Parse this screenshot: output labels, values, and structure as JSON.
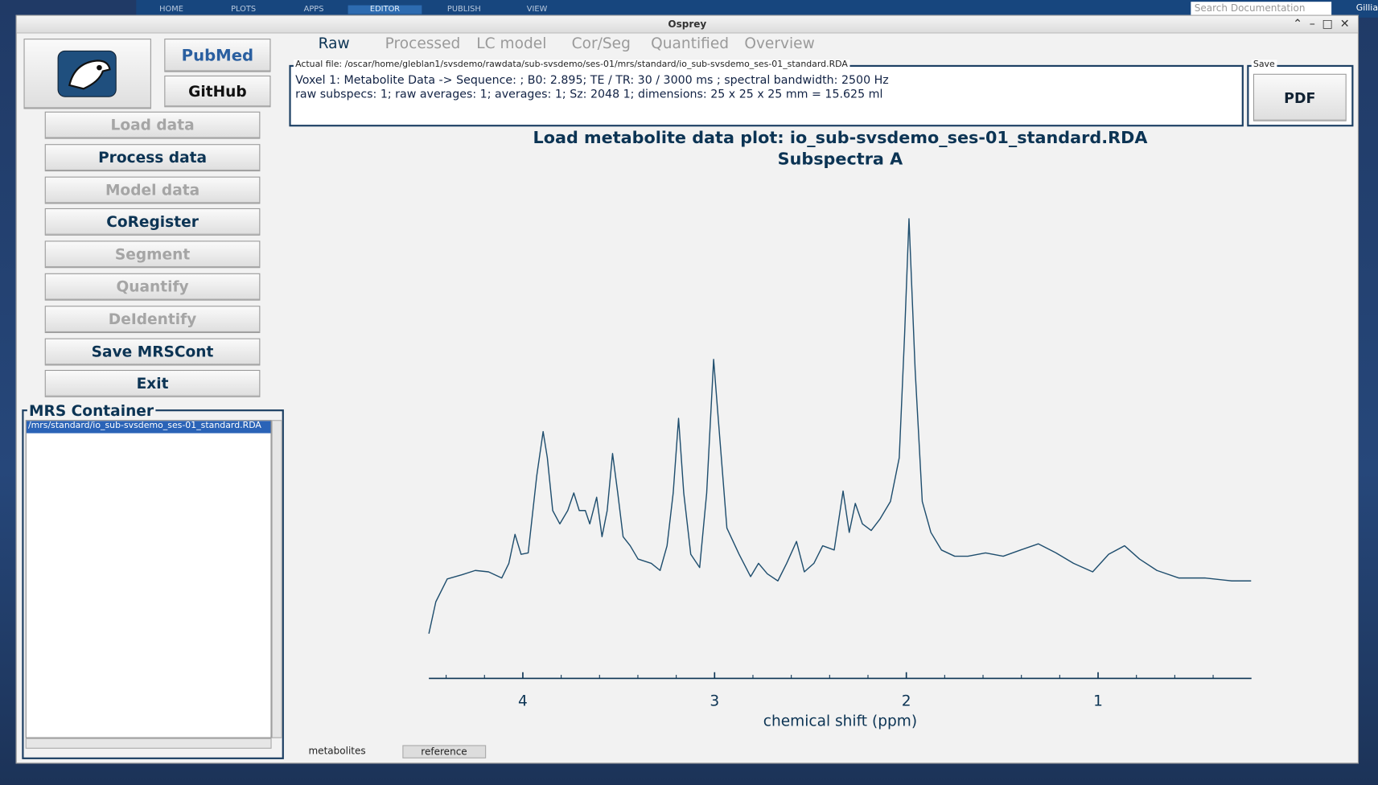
{
  "matlab_toolstrip": {
    "tabs": [
      "HOME",
      "PLOTS",
      "APPS",
      "EDITOR",
      "PUBLISH",
      "VIEW"
    ],
    "search": "Search Documentation",
    "user": "Gillia"
  },
  "window": {
    "title": "Osprey"
  },
  "links": {
    "pubmed": "PubMed",
    "github": "GitHub"
  },
  "buttons": [
    {
      "label": "Load data",
      "enabled": false
    },
    {
      "label": "Process data",
      "enabled": true
    },
    {
      "label": "Model data",
      "enabled": false
    },
    {
      "label": "CoRegister",
      "enabled": true
    },
    {
      "label": "Segment",
      "enabled": false
    },
    {
      "label": "Quantify",
      "enabled": false
    },
    {
      "label": "DeIdentify",
      "enabled": false
    },
    {
      "label": "Save MRSCont",
      "enabled": true
    },
    {
      "label": "Exit",
      "enabled": true
    }
  ],
  "container": {
    "title": "MRS Container",
    "items": [
      "/mrs/standard/io_sub-svsdemo_ses-01_standard.RDA"
    ]
  },
  "tabs": {
    "items": [
      "Raw",
      "Processed",
      "LC model",
      "Cor/Seg",
      "Quantified",
      "Overview"
    ],
    "active": 0
  },
  "info": {
    "legend": "Actual file: /oscar/home/gleblan1/svsdemo/rawdata/sub-svsdemo/ses-01/mrs/standard/io_sub-svsdemo_ses-01_standard.RDA",
    "line1": "Voxel 1: Metabolite Data -> Sequence:  ; B0: 2.895; TE / TR: 30 / 3000 ms ; spectral bandwidth: 2500 Hz",
    "line2": "raw subspecs: 1; raw averages: 1; averages: 1; Sz: 2048     1; dimensions: 25 x 25 x 25 mm = 15.625 ml"
  },
  "save": {
    "legend": "Save",
    "button": "PDF"
  },
  "chart_data": {
    "type": "line",
    "title": "Load metabolite data plot: io_sub-svsdemo_ses-01_standard.RDA",
    "subtitle": "Subspectra A",
    "x_label": "chemical shift (ppm)",
    "xlim": [
      4.49,
      0.2
    ],
    "xticks": [
      4,
      3,
      2,
      1
    ],
    "xminorticks": [
      4.4,
      4.2,
      3.8,
      3.6,
      3.4,
      3.2,
      2.8,
      2.6,
      2.4,
      2.2,
      1.8,
      1.6,
      1.4,
      1.2,
      0.8,
      0.6,
      0.4
    ],
    "ylim": [
      0,
      100
    ],
    "color": "#1f4e6e",
    "x": [
      4.49,
      4.454,
      4.394,
      4.317,
      4.248,
      4.179,
      4.11,
      4.073,
      4.041,
      4.009,
      3.972,
      3.927,
      3.894,
      3.872,
      3.844,
      3.807,
      3.766,
      3.734,
      3.706,
      3.674,
      3.651,
      3.615,
      3.587,
      3.56,
      3.532,
      3.505,
      3.477,
      3.44,
      3.399,
      3.33,
      3.284,
      3.248,
      3.216,
      3.188,
      3.161,
      3.124,
      3.078,
      3.041,
      3.005,
      2.972,
      2.936,
      2.872,
      2.812,
      2.771,
      2.725,
      2.67,
      2.624,
      2.573,
      2.532,
      2.482,
      2.436,
      2.376,
      2.33,
      2.298,
      2.266,
      2.229,
      2.183,
      2.138,
      2.083,
      2.037,
      2.009,
      1.986,
      1.954,
      1.917,
      1.872,
      1.817,
      1.748,
      1.679,
      1.587,
      1.495,
      1.404,
      1.312,
      1.22,
      1.128,
      1.028,
      0.945,
      0.862,
      0.784,
      0.693,
      0.578,
      0.44,
      0.303,
      0.202
    ],
    "values": [
      9.4,
      16.1,
      20.9,
      21.8,
      22.7,
      22.4,
      21.1,
      24.2,
      30.3,
      26.1,
      26.4,
      42.7,
      51.9,
      46.4,
      35.3,
      32.5,
      35.3,
      39.0,
      35.3,
      35.3,
      32.5,
      38.1,
      29.8,
      35.3,
      47.3,
      39.0,
      29.8,
      27.9,
      25.1,
      24.2,
      22.7,
      27.9,
      39.0,
      54.7,
      39.0,
      26.1,
      23.3,
      39.0,
      67.1,
      50.1,
      31.6,
      26.1,
      21.4,
      24.2,
      22.0,
      20.5,
      24.2,
      28.8,
      22.4,
      24.2,
      27.9,
      27.0,
      39.4,
      30.7,
      36.8,
      32.5,
      31.1,
      33.5,
      37.2,
      46.4,
      72.3,
      96.7,
      64.9,
      37.2,
      30.7,
      27.0,
      25.7,
      25.7,
      26.4,
      25.7,
      27.0,
      28.3,
      26.4,
      24.2,
      22.4,
      26.1,
      27.9,
      25.1,
      22.7,
      21.1,
      21.1,
      20.5,
      20.5
    ]
  },
  "bottom_tabs": {
    "items": [
      "metabolites",
      "reference"
    ],
    "active": 0
  }
}
